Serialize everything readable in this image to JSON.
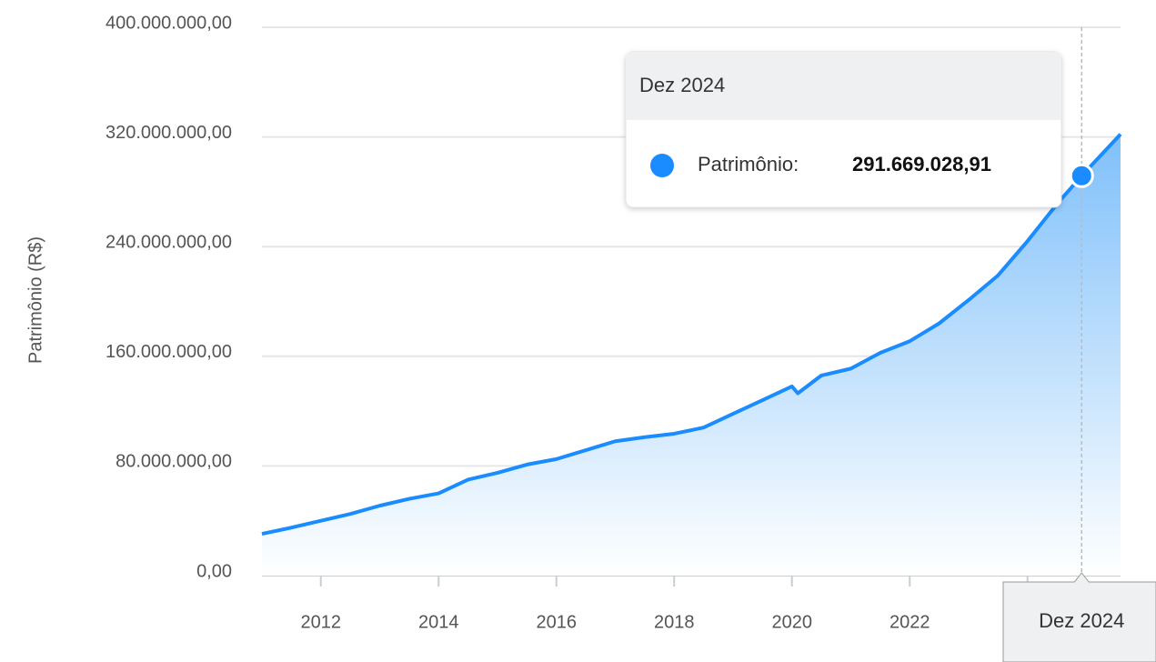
{
  "chart_data": {
    "type": "area",
    "y_label": "Patrimônio (R$)",
    "x": [
      2011.0,
      2011.5,
      2012.0,
      2012.5,
      2013.0,
      2013.5,
      2014.0,
      2014.5,
      2015.0,
      2015.5,
      2016.0,
      2016.5,
      2017.0,
      2017.5,
      2018.0,
      2018.5,
      2019.0,
      2019.5,
      2020.0,
      2020.1,
      2020.5,
      2021.0,
      2021.5,
      2022.0,
      2022.5,
      2023.0,
      2023.5,
      2024.0,
      2024.5,
      2024.92,
      2025.58
    ],
    "series": [
      {
        "name": "Patrimônio:",
        "color": "#1a8cff",
        "values": [
          30500000,
          35000000,
          40000000,
          45000000,
          51000000,
          56000000,
          60000000,
          70000000,
          75000000,
          81000000,
          85000000,
          91500000,
          98000000,
          101000000,
          103500000,
          108000000,
          118000000,
          128000000,
          138000000,
          133000000,
          146000000,
          151000000,
          162500000,
          171000000,
          184000000,
          201000000,
          219000000,
          244000000,
          271000000,
          291669028.91,
          322000000
        ]
      }
    ],
    "xlim": [
      2011.0,
      2025.58
    ],
    "xticks": [
      2012,
      2014,
      2016,
      2018,
      2020,
      2022,
      2024
    ],
    "ylim": [
      0,
      400000000
    ],
    "yticks": [
      {
        "value": 0,
        "label": "0,00"
      },
      {
        "value": 80000000,
        "label": "80.000.000,00"
      },
      {
        "value": 160000000,
        "label": "160.000.000,00"
      },
      {
        "value": 240000000,
        "label": "240.000.000,00"
      },
      {
        "value": 320000000,
        "label": "320.000.000,00"
      },
      {
        "value": 400000000,
        "label": "400.000.000,00"
      }
    ],
    "grid": true,
    "tooltip": {
      "title": "Dez 2024",
      "x": 2024.92,
      "value": 291669028.91,
      "value_label": "291.669.028,91"
    }
  }
}
